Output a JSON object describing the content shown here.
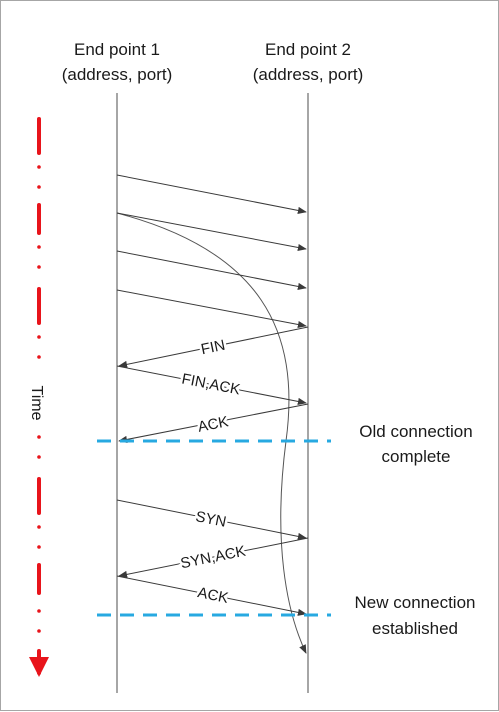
{
  "participants": [
    {
      "id": "ep1",
      "line1": "End point 1",
      "line2": "(address, port)"
    },
    {
      "id": "ep2",
      "line1": "End point 2",
      "line2": "(address, port)"
    }
  ],
  "messages": [
    {
      "label": "",
      "from": "ep1",
      "to": "ep2"
    },
    {
      "label": "",
      "from": "ep1",
      "to": "ep2"
    },
    {
      "label": "",
      "from": "ep1",
      "to": "ep2"
    },
    {
      "label": "",
      "from": "ep1",
      "to": "ep2"
    },
    {
      "label": "FIN",
      "from": "ep2",
      "to": "ep1"
    },
    {
      "label": "FIN,ACK",
      "from": "ep1",
      "to": "ep2"
    },
    {
      "label": "ACK",
      "from": "ep2",
      "to": "ep1"
    },
    {
      "label": "SYN",
      "from": "ep1",
      "to": "ep2"
    },
    {
      "label": "SYN,ACK",
      "from": "ep2",
      "to": "ep1"
    },
    {
      "label": "ACK",
      "from": "ep1",
      "to": "ep2"
    }
  ],
  "delayed_segment": {
    "from": "ep1",
    "to": "ep2"
  },
  "boundaries": [
    {
      "line1": "Old connection",
      "line2": "complete"
    },
    {
      "line1": "New connection",
      "line2": "established"
    }
  ],
  "time_axis": {
    "label": "Time",
    "color": "#e8141b"
  },
  "colors": {
    "boundary": "#27a9e1",
    "lines": "#3a3a3a"
  }
}
